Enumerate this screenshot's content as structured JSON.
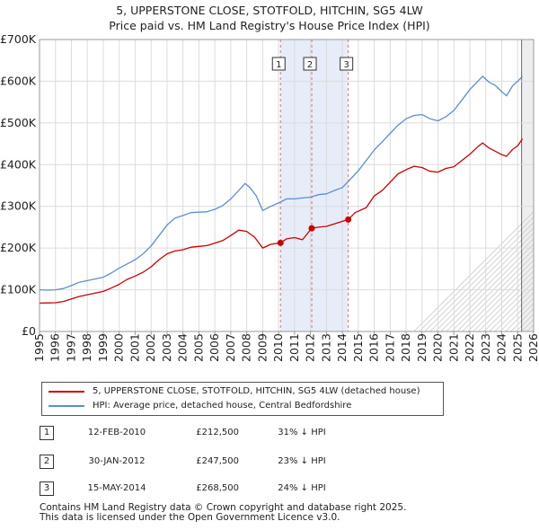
{
  "chart_data": {
    "type": "line",
    "title": "5, UPPERSTONE CLOSE, STOTFOLD, HITCHIN, SG5 4LW",
    "subtitle": "Price paid vs. HM Land Registry's House Price Index (HPI)",
    "xlabel": "",
    "ylabel": "",
    "xlim": [
      1995,
      2026
    ],
    "ylim": [
      0,
      700000
    ],
    "x_ticks": [
      "1995",
      "1996",
      "1997",
      "1998",
      "1999",
      "2000",
      "2001",
      "2002",
      "2003",
      "2004",
      "2005",
      "2006",
      "2007",
      "2008",
      "2009",
      "2010",
      "2011",
      "2012",
      "2013",
      "2014",
      "2015",
      "2016",
      "2017",
      "2018",
      "2019",
      "2020",
      "2021",
      "2022",
      "2023",
      "2024",
      "2025",
      "2026"
    ],
    "y_ticks": [
      {
        "value": 0,
        "label": "£0"
      },
      {
        "value": 100000,
        "label": "£100K"
      },
      {
        "value": 200000,
        "label": "£200K"
      },
      {
        "value": 300000,
        "label": "£300K"
      },
      {
        "value": 400000,
        "label": "£400K"
      },
      {
        "value": 500000,
        "label": "£500K"
      },
      {
        "value": 600000,
        "label": "£600K"
      },
      {
        "value": 700000,
        "label": "£700K"
      }
    ],
    "grid": true,
    "series": [
      {
        "name": "5, UPPERSTONE CLOSE, STOTFOLD, HITCHIN, SG5 4LW (detached house)",
        "color": "#cc0000",
        "points": [
          [
            1995.0,
            68000
          ],
          [
            1995.5,
            68500
          ],
          [
            1996.0,
            69000
          ],
          [
            1996.5,
            72000
          ],
          [
            1997.0,
            78000
          ],
          [
            1997.5,
            84000
          ],
          [
            1998.0,
            88000
          ],
          [
            1998.5,
            92000
          ],
          [
            1999.0,
            96000
          ],
          [
            1999.5,
            104000
          ],
          [
            2000.0,
            113000
          ],
          [
            2000.5,
            125000
          ],
          [
            2001.0,
            133000
          ],
          [
            2001.5,
            142000
          ],
          [
            2002.0,
            155000
          ],
          [
            2002.5,
            172000
          ],
          [
            2003.0,
            186000
          ],
          [
            2003.5,
            193000
          ],
          [
            2004.0,
            196000
          ],
          [
            2004.5,
            202000
          ],
          [
            2005.0,
            204000
          ],
          [
            2005.5,
            206000
          ],
          [
            2006.0,
            212000
          ],
          [
            2006.5,
            218000
          ],
          [
            2007.0,
            230000
          ],
          [
            2007.5,
            243000
          ],
          [
            2008.0,
            240000
          ],
          [
            2008.5,
            226000
          ],
          [
            2009.0,
            200000
          ],
          [
            2009.5,
            209000
          ],
          [
            2010.12,
            212500
          ],
          [
            2010.5,
            222000
          ],
          [
            2011.0,
            225000
          ],
          [
            2011.5,
            220000
          ],
          [
            2012.08,
            247500
          ],
          [
            2012.5,
            250000
          ],
          [
            2013.0,
            252000
          ],
          [
            2013.5,
            258000
          ],
          [
            2014.37,
            268500
          ],
          [
            2014.8,
            285000
          ],
          [
            2015.5,
            297000
          ],
          [
            2016.0,
            325000
          ],
          [
            2016.5,
            338000
          ],
          [
            2017.0,
            358000
          ],
          [
            2017.5,
            378000
          ],
          [
            2018.0,
            388000
          ],
          [
            2018.5,
            396000
          ],
          [
            2019.0,
            393000
          ],
          [
            2019.5,
            384000
          ],
          [
            2020.0,
            382000
          ],
          [
            2020.5,
            391000
          ],
          [
            2021.0,
            395000
          ],
          [
            2021.5,
            410000
          ],
          [
            2022.0,
            425000
          ],
          [
            2022.5,
            443000
          ],
          [
            2022.8,
            452000
          ],
          [
            2023.2,
            440000
          ],
          [
            2023.6,
            432000
          ],
          [
            2024.0,
            424000
          ],
          [
            2024.3,
            420000
          ],
          [
            2024.7,
            437000
          ],
          [
            2025.0,
            445000
          ],
          [
            2025.3,
            462000
          ]
        ]
      },
      {
        "name": "HPI: Average price, detached house, Central Bedfordshire",
        "color": "#5b8fd0",
        "points": [
          [
            1995.0,
            100000
          ],
          [
            1995.5,
            99000
          ],
          [
            1996.0,
            100000
          ],
          [
            1996.5,
            103000
          ],
          [
            1997.0,
            110000
          ],
          [
            1997.5,
            118000
          ],
          [
            1998.0,
            122000
          ],
          [
            1998.5,
            126000
          ],
          [
            1999.0,
            130000
          ],
          [
            1999.5,
            140000
          ],
          [
            2000.0,
            152000
          ],
          [
            2000.5,
            162000
          ],
          [
            2001.0,
            172000
          ],
          [
            2001.5,
            186000
          ],
          [
            2002.0,
            205000
          ],
          [
            2002.5,
            230000
          ],
          [
            2003.0,
            255000
          ],
          [
            2003.5,
            272000
          ],
          [
            2004.0,
            278000
          ],
          [
            2004.5,
            285000
          ],
          [
            2005.0,
            286000
          ],
          [
            2005.5,
            287000
          ],
          [
            2006.0,
            293000
          ],
          [
            2006.5,
            302000
          ],
          [
            2007.0,
            318000
          ],
          [
            2007.5,
            338000
          ],
          [
            2007.9,
            355000
          ],
          [
            2008.2,
            345000
          ],
          [
            2008.6,
            325000
          ],
          [
            2009.0,
            290000
          ],
          [
            2009.5,
            300000
          ],
          [
            2010.0,
            308000
          ],
          [
            2010.5,
            318000
          ],
          [
            2011.0,
            318000
          ],
          [
            2011.5,
            320000
          ],
          [
            2012.0,
            322000
          ],
          [
            2012.5,
            328000
          ],
          [
            2013.0,
            330000
          ],
          [
            2013.5,
            338000
          ],
          [
            2014.0,
            345000
          ],
          [
            2014.5,
            365000
          ],
          [
            2015.0,
            385000
          ],
          [
            2015.5,
            410000
          ],
          [
            2016.0,
            435000
          ],
          [
            2016.5,
            455000
          ],
          [
            2017.0,
            475000
          ],
          [
            2017.5,
            495000
          ],
          [
            2018.0,
            510000
          ],
          [
            2018.5,
            518000
          ],
          [
            2019.0,
            520000
          ],
          [
            2019.5,
            510000
          ],
          [
            2020.0,
            505000
          ],
          [
            2020.5,
            515000
          ],
          [
            2021.0,
            530000
          ],
          [
            2021.5,
            555000
          ],
          [
            2022.0,
            580000
          ],
          [
            2022.5,
            600000
          ],
          [
            2022.8,
            612000
          ],
          [
            2023.2,
            598000
          ],
          [
            2023.6,
            590000
          ],
          [
            2024.0,
            575000
          ],
          [
            2024.3,
            565000
          ],
          [
            2024.7,
            590000
          ],
          [
            2025.0,
            600000
          ],
          [
            2025.3,
            612000
          ]
        ]
      }
    ],
    "sales": [
      {
        "n": "1",
        "x": 2010.12,
        "price": 212500,
        "date": "12-FEB-2010",
        "price_label": "£212,500",
        "hpi": "31% ↓ HPI"
      },
      {
        "n": "2",
        "x": 2012.08,
        "price": 247500,
        "date": "30-JAN-2012",
        "price_label": "£247,500",
        "hpi": "23% ↓ HPI"
      },
      {
        "n": "3",
        "x": 2014.37,
        "price": 268500,
        "date": "15-MAY-2014",
        "price_label": "£268,500",
        "hpi": "24% ↓ HPI"
      }
    ],
    "forecast_start": 2025.25,
    "shaded_range": [
      2010.12,
      2014.37
    ]
  },
  "legend": {
    "property_label": "5, UPPERSTONE CLOSE, STOTFOLD, HITCHIN, SG5 4LW (detached house)",
    "hpi_label": "HPI: Average price, detached house, Central Bedfordshire"
  },
  "footer": {
    "line1": "Contains HM Land Registry data © Crown copyright and database right 2025.",
    "line2": "This data is licensed under the Open Government Licence v3.0."
  }
}
